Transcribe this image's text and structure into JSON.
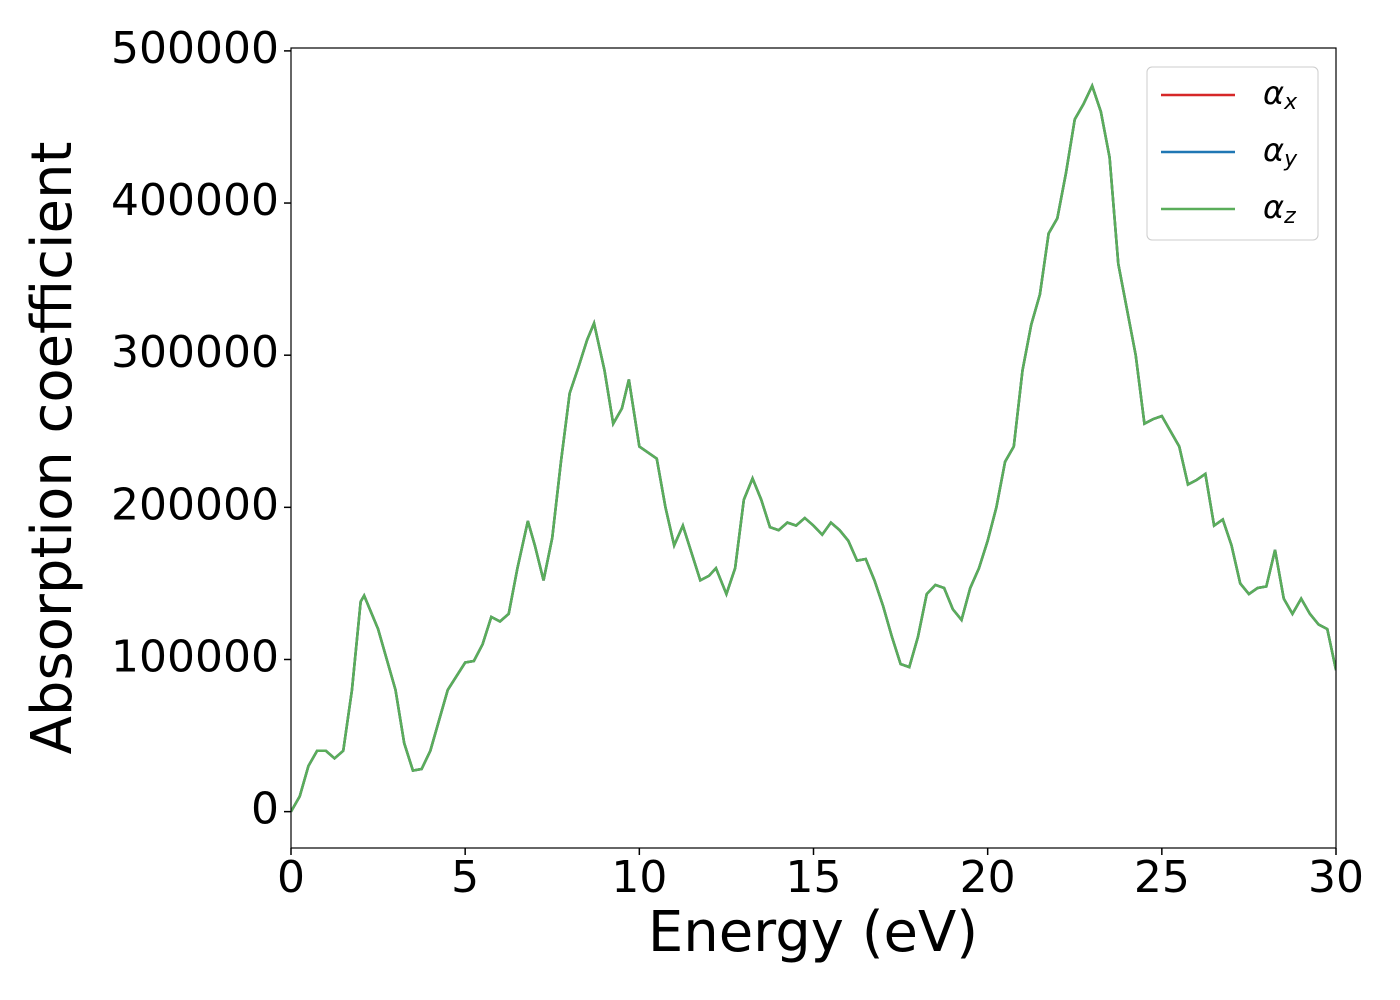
{
  "chart_data": {
    "type": "line",
    "xlabel": "Energy (eV)",
    "ylabel": "Absorption coefficient",
    "xlim": [
      0,
      30
    ],
    "xticks": [
      0,
      5,
      10,
      15,
      20,
      25,
      30
    ],
    "ylim": [
      -23900,
      501900
    ],
    "yticks": [
      0,
      100000,
      200000,
      300000,
      400000,
      500000
    ],
    "legend": "upper right",
    "x": [
      0,
      0.25,
      0.5,
      0.75,
      1.0,
      1.25,
      1.5,
      1.75,
      2.0,
      2.1,
      2.5,
      3.0,
      3.25,
      3.5,
      3.75,
      4.0,
      4.5,
      5.0,
      5.25,
      5.5,
      5.75,
      6.0,
      6.25,
      6.5,
      6.8,
      7.0,
      7.25,
      7.5,
      7.75,
      8.0,
      8.25,
      8.5,
      8.7,
      9.0,
      9.25,
      9.5,
      9.7,
      10.0,
      10.5,
      10.75,
      11.0,
      11.25,
      11.5,
      11.75,
      12.0,
      12.2,
      12.5,
      12.75,
      13.0,
      13.25,
      13.5,
      13.75,
      14.0,
      14.25,
      14.5,
      14.75,
      15.0,
      15.25,
      15.5,
      15.75,
      16.0,
      16.25,
      16.5,
      16.75,
      17.0,
      17.25,
      17.5,
      17.75,
      18.0,
      18.25,
      18.5,
      18.75,
      19.0,
      19.25,
      19.5,
      19.75,
      20.0,
      20.25,
      20.5,
      20.75,
      21.0,
      21.25,
      21.5,
      21.75,
      22.0,
      22.25,
      22.5,
      22.75,
      23.0,
      23.25,
      23.5,
      23.75,
      24.0,
      24.25,
      24.5,
      24.75,
      25.0,
      25.25,
      25.5,
      25.75,
      26.0,
      26.25,
      26.5,
      26.75,
      27.0,
      27.25,
      27.5,
      27.75,
      28.0,
      28.25,
      28.5,
      28.75,
      29.0,
      29.25,
      29.5,
      29.75,
      30.0
    ],
    "series": [
      {
        "name": "αx",
        "color": "#d62728",
        "values": [
          0,
          10000,
          30000,
          40000,
          40000,
          35000,
          40000,
          80000,
          138000,
          142000,
          120000,
          80000,
          45000,
          27000,
          28000,
          40000,
          80000,
          98000,
          99000,
          110000,
          128000,
          125000,
          130000,
          160000,
          191000,
          175000,
          152000,
          180000,
          230000,
          275000,
          292000,
          310000,
          321000,
          290000,
          255000,
          265000,
          284000,
          240000,
          232000,
          200000,
          175000,
          188000,
          170000,
          152000,
          155000,
          160000,
          143000,
          160000,
          205000,
          219000,
          205000,
          187000,
          185000,
          190000,
          188000,
          193000,
          188000,
          182000,
          190000,
          185000,
          178000,
          165000,
          166000,
          152000,
          135000,
          115000,
          97000,
          95000,
          115000,
          143000,
          149000,
          147000,
          133000,
          126000,
          147000,
          160000,
          178000,
          200000,
          230000,
          240000,
          290000,
          320000,
          340000,
          380000,
          390000,
          420000,
          455000,
          465000,
          477000,
          460000,
          430000,
          360000,
          330000,
          300000,
          255000,
          258000,
          260000,
          250000,
          240000,
          215000,
          218000,
          222000,
          188000,
          192000,
          175000,
          150000,
          143000,
          147000,
          148000,
          172000,
          140000,
          130000,
          140000,
          130000,
          123000,
          120000,
          93000
        ]
      },
      {
        "name": "αy",
        "color": "#1f77b4",
        "values": [
          0,
          10000,
          30000,
          40000,
          40000,
          35000,
          40000,
          80000,
          138000,
          142000,
          120000,
          80000,
          45000,
          27000,
          28000,
          40000,
          80000,
          98000,
          99000,
          110000,
          128000,
          125000,
          130000,
          160000,
          191000,
          175000,
          152000,
          180000,
          230000,
          275000,
          292000,
          310000,
          321000,
          290000,
          255000,
          265000,
          284000,
          240000,
          232000,
          200000,
          175000,
          188000,
          170000,
          152000,
          155000,
          160000,
          143000,
          160000,
          205000,
          219000,
          205000,
          187000,
          185000,
          190000,
          188000,
          193000,
          188000,
          182000,
          190000,
          185000,
          178000,
          165000,
          166000,
          152000,
          135000,
          115000,
          97000,
          95000,
          115000,
          143000,
          149000,
          147000,
          133000,
          126000,
          147000,
          160000,
          178000,
          200000,
          230000,
          240000,
          290000,
          320000,
          340000,
          380000,
          390000,
          420000,
          455000,
          465000,
          477000,
          460000,
          430000,
          360000,
          330000,
          300000,
          255000,
          258000,
          260000,
          250000,
          240000,
          215000,
          218000,
          222000,
          188000,
          192000,
          175000,
          150000,
          143000,
          147000,
          148000,
          172000,
          140000,
          130000,
          140000,
          130000,
          123000,
          120000,
          93000
        ]
      },
      {
        "name": "αz",
        "color": "#5aad5a",
        "values": [
          0,
          10000,
          30000,
          40000,
          40000,
          35000,
          40000,
          80000,
          138000,
          142000,
          120000,
          80000,
          45000,
          27000,
          28000,
          40000,
          80000,
          98000,
          99000,
          110000,
          128000,
          125000,
          130000,
          160000,
          191000,
          175000,
          152000,
          180000,
          230000,
          275000,
          292000,
          310000,
          321000,
          290000,
          255000,
          265000,
          284000,
          240000,
          232000,
          200000,
          175000,
          188000,
          170000,
          152000,
          155000,
          160000,
          143000,
          160000,
          205000,
          219000,
          205000,
          187000,
          185000,
          190000,
          188000,
          193000,
          188000,
          182000,
          190000,
          185000,
          178000,
          165000,
          166000,
          152000,
          135000,
          115000,
          97000,
          95000,
          115000,
          143000,
          149000,
          147000,
          133000,
          126000,
          147000,
          160000,
          178000,
          200000,
          230000,
          240000,
          290000,
          320000,
          340000,
          380000,
          390000,
          420000,
          455000,
          465000,
          477000,
          460000,
          430000,
          360000,
          330000,
          300000,
          255000,
          258000,
          260000,
          250000,
          240000,
          215000,
          218000,
          222000,
          188000,
          192000,
          175000,
          150000,
          143000,
          147000,
          148000,
          172000,
          140000,
          130000,
          140000,
          130000,
          123000,
          120000,
          93000
        ]
      }
    ]
  }
}
